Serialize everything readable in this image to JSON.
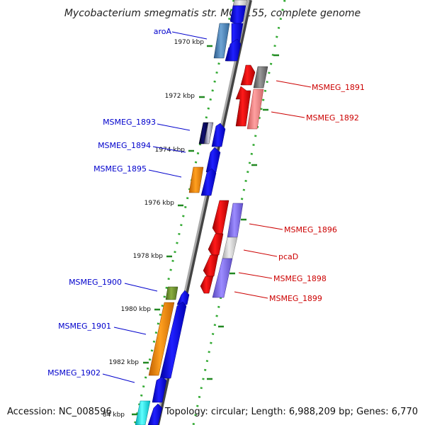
{
  "title": "Mycobacterium smegmatis str. MC2 155, complete genome",
  "footer": {
    "accession": "Accession: NC_008596",
    "summary": "Topology: circular; Length: 6,988,209 bp; Genes: 6,770"
  },
  "ticks": [
    "1970 kbp",
    "1972 kbp",
    "1974 kbp",
    "1976 kbp",
    "1978 kbp",
    "1980 kbp",
    "1982 kbp",
    "84 kbp"
  ],
  "genes_reverse": [
    {
      "name": "aroA",
      "color": "#00008b"
    },
    {
      "name": "MSMEG_1893",
      "color": "#00008b"
    },
    {
      "name": "MSMEG_1894",
      "color": "#00008b"
    },
    {
      "name": "MSMEG_1895",
      "color": "#00008b"
    },
    {
      "name": "MSMEG_1900",
      "color": "#00008b"
    },
    {
      "name": "MSMEG_1901",
      "color": "#00008b"
    },
    {
      "name": "MSMEG_1902",
      "color": "#00008b"
    }
  ],
  "genes_forward": [
    {
      "name": "MSMEG_1891",
      "color": "#cc0000"
    },
    {
      "name": "MSMEG_1892",
      "color": "#cc0000"
    },
    {
      "name": "MSMEG_1896",
      "color": "#cc0000"
    },
    {
      "name": "pcaD",
      "color": "#cc0000"
    },
    {
      "name": "MSMEG_1898",
      "color": "#cc0000"
    },
    {
      "name": "MSMEG_1899",
      "color": "#cc0000"
    }
  ],
  "colors": {
    "backbone": "#888888",
    "dotted_ring": "#33aa33",
    "tick": "#228822",
    "cds_reverse": "#0000ee",
    "cds_forward": "#ee0000",
    "orange_feature": "#ff8c00",
    "olive_feature": "#6b8e23",
    "steelblue_feature": "#4682b4",
    "cyan_feature": "#00e5ee",
    "slateblue_feature": "#7b68ee"
  }
}
